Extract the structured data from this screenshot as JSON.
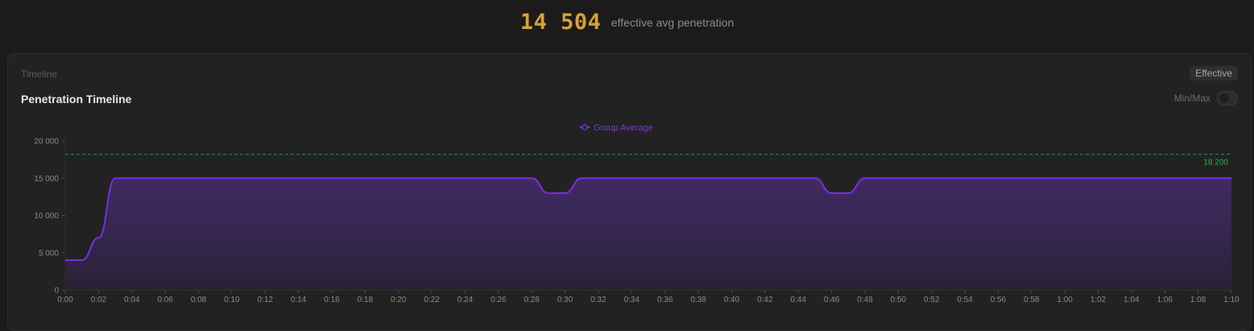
{
  "summary": {
    "value": "14 504",
    "caption": "effective avg penetration"
  },
  "card": {
    "kicker": "Timeline",
    "title": "Penetration Timeline",
    "mode_badge": "Effective",
    "toggle_label": "Min/Max",
    "toggle_on": false
  },
  "chart_data": {
    "type": "area",
    "series": [
      {
        "name": "Group Average",
        "color": "#7b2fe0",
        "x": [
          "0:00",
          "0:01",
          "0:02",
          "0:03",
          "0:28",
          "0:29",
          "0:30",
          "0:31",
          "0:45",
          "0:46",
          "0:47",
          "0:48",
          "1:10"
        ],
        "values": [
          4000,
          4000,
          7000,
          15000,
          15000,
          13000,
          13000,
          15000,
          15000,
          13000,
          13000,
          15000,
          15000
        ]
      }
    ],
    "reference_line": {
      "value": 18200,
      "label": "18 200",
      "color": "#2faa4d"
    },
    "x_range": [
      "0:00",
      "1:10"
    ],
    "x_ticks": [
      "0:00",
      "0:02",
      "0:04",
      "0:06",
      "0:08",
      "0:10",
      "0:12",
      "0:14",
      "0:16",
      "0:18",
      "0:20",
      "0:22",
      "0:24",
      "0:26",
      "0:28",
      "0:30",
      "0:32",
      "0:34",
      "0:36",
      "0:38",
      "0:40",
      "0:42",
      "0:44",
      "0:46",
      "0:48",
      "0:50",
      "0:52",
      "0:54",
      "0:56",
      "0:58",
      "1:00",
      "1:02",
      "1:04",
      "1:06",
      "1:08",
      "1:10"
    ],
    "ylim": [
      0,
      20000
    ],
    "y_ticks": [
      0,
      5000,
      10000,
      15000,
      20000
    ],
    "y_tick_labels": [
      "0",
      "5 000",
      "10 000",
      "15 000",
      "20 000"
    ],
    "legend_position": "top-center",
    "grid": false
  }
}
